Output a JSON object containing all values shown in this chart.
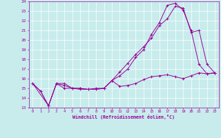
{
  "xlabel": "Windchill (Refroidissement éolien,°C)",
  "background_color": "#c8ecec",
  "grid_color": "#ffffff",
  "line_color": "#990099",
  "xlim": [
    -0.5,
    23.5
  ],
  "ylim": [
    13,
    24
  ],
  "xticks": [
    0,
    1,
    2,
    3,
    4,
    5,
    6,
    7,
    8,
    9,
    10,
    11,
    12,
    13,
    14,
    15,
    16,
    17,
    18,
    19,
    20,
    21,
    22,
    23
  ],
  "yticks": [
    13,
    14,
    15,
    16,
    17,
    18,
    19,
    20,
    21,
    22,
    23,
    24
  ],
  "line1_x": [
    0,
    1,
    2,
    3,
    4,
    5,
    6,
    7,
    8,
    9,
    10,
    11,
    12,
    13,
    14,
    15,
    16,
    17,
    18,
    19,
    20,
    21,
    22,
    23
  ],
  "line1_y": [
    15.5,
    14.7,
    13.2,
    15.5,
    15.5,
    15.0,
    15.0,
    14.9,
    14.9,
    15.0,
    15.8,
    15.2,
    15.3,
    15.5,
    15.9,
    16.2,
    16.3,
    16.4,
    16.2,
    16.0,
    16.3,
    16.6,
    16.5,
    16.6
  ],
  "line2_x": [
    0,
    1,
    2,
    3,
    4,
    5,
    6,
    7,
    8,
    9,
    10,
    11,
    12,
    13,
    14,
    15,
    16,
    17,
    18,
    19,
    20,
    21,
    22,
    23
  ],
  "line2_y": [
    15.5,
    14.7,
    13.2,
    15.5,
    15.3,
    15.0,
    14.9,
    14.9,
    14.9,
    15.0,
    15.8,
    16.3,
    17.0,
    18.2,
    19.0,
    20.6,
    21.8,
    23.6,
    23.8,
    23.1,
    21.0,
    17.5,
    16.5,
    16.6
  ],
  "line3_x": [
    0,
    2,
    3,
    4,
    5,
    6,
    7,
    8,
    9,
    10,
    11,
    12,
    13,
    14,
    15,
    16,
    17,
    18,
    19,
    20,
    21,
    22,
    23
  ],
  "line3_y": [
    15.5,
    13.2,
    15.5,
    15.0,
    15.0,
    15.0,
    14.9,
    15.0,
    15.0,
    15.8,
    16.7,
    17.6,
    18.5,
    19.3,
    20.2,
    21.5,
    22.2,
    23.5,
    23.3,
    20.8,
    21.0,
    17.5,
    16.6
  ]
}
